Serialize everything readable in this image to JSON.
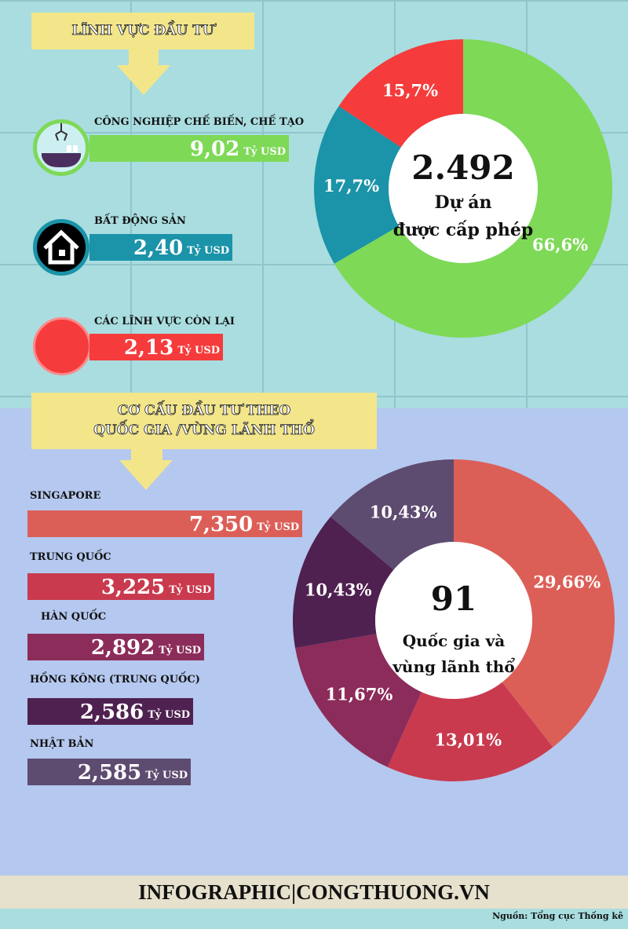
{
  "section1": {
    "title": "LĨNH VỰC ĐẦU TƯ",
    "items": [
      {
        "label": "CÔNG NGHIỆP CHẾ BIẾN, CHẾ TẠO",
        "value": "9,02",
        "unit": "Tỷ USD",
        "color": "#7ed957",
        "icon": "factory-claw-icon"
      },
      {
        "label": "BẤT ĐỘNG SẢN",
        "value": "2,40",
        "unit": "Tỷ USD",
        "color": "#1b93a8",
        "icon": "house-icon"
      },
      {
        "label": "CÁC LĨNH VỰC CÒN LẠI",
        "value": "2,13",
        "unit": "Tỷ USD",
        "color": "#f53b3b",
        "icon": "red-circle-icon"
      }
    ]
  },
  "section2": {
    "title_line1": "CƠ CẤU ĐẦU TƯ THEO",
    "title_line2": "QUỐC GIA /VÙNG LÃNH THỔ",
    "items": [
      {
        "label": "SINGAPORE",
        "value": "7,350",
        "unit": "Tỷ USD",
        "color": "#dc5f57"
      },
      {
        "label": "TRUNG QUỐC",
        "value": "3,225",
        "unit": "Tỷ USD",
        "color": "#c93a4e"
      },
      {
        "label": "HÀN QUỐC",
        "value": "2,892",
        "unit": "Tỷ USD",
        "color": "#8c2c5a"
      },
      {
        "label": "HỒNG KÔNG (TRUNG QUỐC)",
        "value": "2,586",
        "unit": "Tỷ USD",
        "color": "#4f2150"
      },
      {
        "label": "NHẬT BẢN",
        "value": "2,585",
        "unit": "Tỷ USD",
        "color": "#5e4b70"
      }
    ]
  },
  "chart_data": [
    {
      "type": "pie",
      "donut": true,
      "center_number": "2.492",
      "center_line1": "Dự án",
      "center_line2": "được cấp phép",
      "slices": [
        {
          "value": 66.6,
          "label": "66,6%",
          "color": "#7ed957"
        },
        {
          "value": 17.7,
          "label": "17,7%",
          "color": "#1b93a8"
        },
        {
          "value": 15.7,
          "label": "15,7%",
          "color": "#f53b3b"
        }
      ]
    },
    {
      "type": "pie",
      "donut": true,
      "center_number": "91",
      "center_line1": "Quốc gia và",
      "center_line2": "vùng lãnh thổ",
      "slices": [
        {
          "value": 29.66,
          "label": "29,66%",
          "color": "#dc5f57"
        },
        {
          "value": 13.01,
          "label": "13,01%",
          "color": "#c93a4e"
        },
        {
          "value": 11.67,
          "label": "11,67%",
          "color": "#8c2c5a"
        },
        {
          "value": 10.43,
          "label": "10,43%",
          "color": "#4f2150"
        },
        {
          "value": 10.43,
          "label": "10,43%",
          "color": "#5e4b70"
        }
      ]
    }
  ],
  "footer": {
    "brand": "INFOGRAPHIC|CONGTHUONG.VN",
    "source": "Nguồn: Tổng cục Thống kê"
  }
}
